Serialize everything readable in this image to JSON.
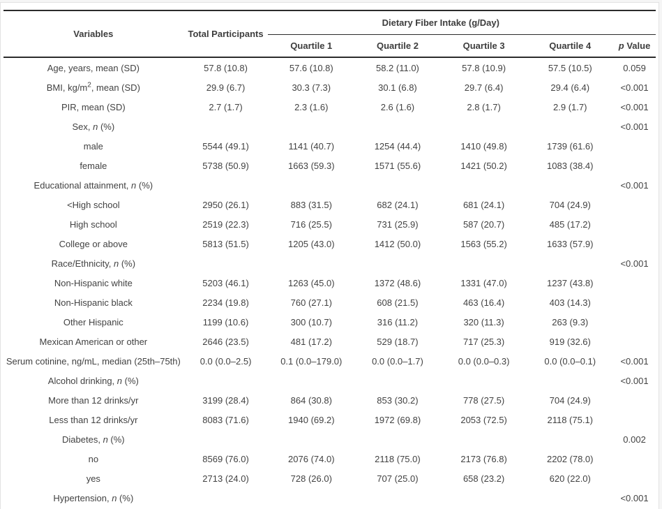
{
  "colors": {
    "text": "#404040",
    "rule": "#2b2b2b",
    "frame_border": "#e2e2e2",
    "background": "#ffffff"
  },
  "table": {
    "headers": {
      "variables": "Variables",
      "total_participants": "Total Participants",
      "group_spanner": "Dietary Fiber Intake (g/Day)",
      "quartiles": [
        "Quartile 1",
        "Quartile 2",
        "Quartile 3",
        "Quartile 4"
      ],
      "p_value_italic": "p",
      "p_value_rest": " Value"
    },
    "rows": [
      {
        "label_parts": [
          {
            "text": "Age, years, mean (SD)",
            "style": "normal"
          }
        ],
        "cells": [
          "57.8 (10.8)",
          "57.6 (10.8)",
          "58.2 (11.0)",
          "57.8 (10.9)",
          "57.5 (10.5)",
          "0.059"
        ]
      },
      {
        "label_parts": [
          {
            "text": "BMI, kg/m",
            "style": "normal"
          },
          {
            "text": "2",
            "style": "sup"
          },
          {
            "text": ", mean (SD)",
            "style": "normal"
          }
        ],
        "cells": [
          "29.9 (6.7)",
          "30.3 (7.3)",
          "30.1 (6.8)",
          "29.7 (6.4)",
          "29.4 (6.4)",
          "<0.001"
        ]
      },
      {
        "label_parts": [
          {
            "text": "PIR, mean (SD)",
            "style": "normal"
          }
        ],
        "cells": [
          "2.7 (1.7)",
          "2.3 (1.6)",
          "2.6 (1.6)",
          "2.8 (1.7)",
          "2.9 (1.7)",
          "<0.001"
        ]
      },
      {
        "label_parts": [
          {
            "text": "Sex, ",
            "style": "normal"
          },
          {
            "text": "n",
            "style": "italic"
          },
          {
            "text": " (%)",
            "style": "normal"
          }
        ],
        "cells": [
          "",
          "",
          "",
          "",
          "",
          "<0.001"
        ]
      },
      {
        "label_parts": [
          {
            "text": "male",
            "style": "normal"
          }
        ],
        "cells": [
          "5544 (49.1)",
          "1141 (40.7)",
          "1254 (44.4)",
          "1410 (49.8)",
          "1739 (61.6)",
          ""
        ]
      },
      {
        "label_parts": [
          {
            "text": "female",
            "style": "normal"
          }
        ],
        "cells": [
          "5738 (50.9)",
          "1663 (59.3)",
          "1571 (55.6)",
          "1421 (50.2)",
          "1083 (38.4)",
          ""
        ]
      },
      {
        "label_parts": [
          {
            "text": "Educational attainment, ",
            "style": "normal"
          },
          {
            "text": "n",
            "style": "italic"
          },
          {
            "text": " (%)",
            "style": "normal"
          }
        ],
        "cells": [
          "",
          "",
          "",
          "",
          "",
          "<0.001"
        ]
      },
      {
        "label_parts": [
          {
            "text": "<High school",
            "style": "normal"
          }
        ],
        "cells": [
          "2950 (26.1)",
          "883 (31.5)",
          "682 (24.1)",
          "681 (24.1)",
          "704 (24.9)",
          ""
        ]
      },
      {
        "label_parts": [
          {
            "text": "High school",
            "style": "normal"
          }
        ],
        "cells": [
          "2519 (22.3)",
          "716 (25.5)",
          "731 (25.9)",
          "587 (20.7)",
          "485 (17.2)",
          ""
        ]
      },
      {
        "label_parts": [
          {
            "text": "College or above",
            "style": "normal"
          }
        ],
        "cells": [
          "5813 (51.5)",
          "1205 (43.0)",
          "1412 (50.0)",
          "1563 (55.2)",
          "1633 (57.9)",
          ""
        ]
      },
      {
        "label_parts": [
          {
            "text": "Race/Ethnicity, ",
            "style": "normal"
          },
          {
            "text": "n",
            "style": "italic"
          },
          {
            "text": " (%)",
            "style": "normal"
          }
        ],
        "cells": [
          "",
          "",
          "",
          "",
          "",
          "<0.001"
        ]
      },
      {
        "label_parts": [
          {
            "text": "Non-Hispanic white",
            "style": "normal"
          }
        ],
        "cells": [
          "5203 (46.1)",
          "1263 (45.0)",
          "1372 (48.6)",
          "1331 (47.0)",
          "1237 (43.8)",
          ""
        ]
      },
      {
        "label_parts": [
          {
            "text": "Non-Hispanic black",
            "style": "normal"
          }
        ],
        "cells": [
          "2234 (19.8)",
          "760 (27.1)",
          "608 (21.5)",
          "463 (16.4)",
          "403 (14.3)",
          ""
        ]
      },
      {
        "label_parts": [
          {
            "text": "Other Hispanic",
            "style": "normal"
          }
        ],
        "cells": [
          "1199 (10.6)",
          "300 (10.7)",
          "316 (11.2)",
          "320 (11.3)",
          "263 (9.3)",
          ""
        ]
      },
      {
        "label_parts": [
          {
            "text": "Mexican American or other",
            "style": "normal"
          }
        ],
        "cells": [
          "2646 (23.5)",
          "481 (17.2)",
          "529 (18.7)",
          "717 (25.3)",
          "919 (32.6)",
          ""
        ]
      },
      {
        "label_parts": [
          {
            "text": "Serum cotinine, ng/mL, median (25th–75th)",
            "style": "normal"
          }
        ],
        "cells": [
          "0.0 (0.0–2.5)",
          "0.1 (0.0–179.0)",
          "0.0 (0.0–1.7)",
          "0.0 (0.0–0.3)",
          "0.0 (0.0–0.1)",
          "<0.001"
        ]
      },
      {
        "label_parts": [
          {
            "text": "Alcohol drinking, ",
            "style": "normal"
          },
          {
            "text": "n",
            "style": "italic"
          },
          {
            "text": " (%)",
            "style": "normal"
          }
        ],
        "cells": [
          "",
          "",
          "",
          "",
          "",
          "<0.001"
        ]
      },
      {
        "label_parts": [
          {
            "text": "More than 12 drinks/yr",
            "style": "normal"
          }
        ],
        "cells": [
          "3199 (28.4)",
          "864 (30.8)",
          "853 (30.2)",
          "778 (27.5)",
          "704 (24.9)",
          ""
        ]
      },
      {
        "label_parts": [
          {
            "text": "Less than 12 drinks/yr",
            "style": "normal"
          }
        ],
        "cells": [
          "8083 (71.6)",
          "1940 (69.2)",
          "1972 (69.8)",
          "2053 (72.5)",
          "2118 (75.1)",
          ""
        ]
      },
      {
        "label_parts": [
          {
            "text": "Diabetes, ",
            "style": "normal"
          },
          {
            "text": "n",
            "style": "italic"
          },
          {
            "text": " (%)",
            "style": "normal"
          }
        ],
        "cells": [
          "",
          "",
          "",
          "",
          "",
          "0.002"
        ]
      },
      {
        "label_parts": [
          {
            "text": "no",
            "style": "normal"
          }
        ],
        "cells": [
          "8569 (76.0)",
          "2076 (74.0)",
          "2118 (75.0)",
          "2173 (76.8)",
          "2202 (78.0)",
          ""
        ]
      },
      {
        "label_parts": [
          {
            "text": "yes",
            "style": "normal"
          }
        ],
        "cells": [
          "2713 (24.0)",
          "728 (26.0)",
          "707 (25.0)",
          "658 (23.2)",
          "620 (22.0)",
          ""
        ]
      },
      {
        "label_parts": [
          {
            "text": "Hypertension, ",
            "style": "normal"
          },
          {
            "text": "n",
            "style": "italic"
          },
          {
            "text": " (%)",
            "style": "normal"
          }
        ],
        "cells": [
          "",
          "",
          "",
          "",
          "",
          "<0.001"
        ]
      }
    ]
  }
}
